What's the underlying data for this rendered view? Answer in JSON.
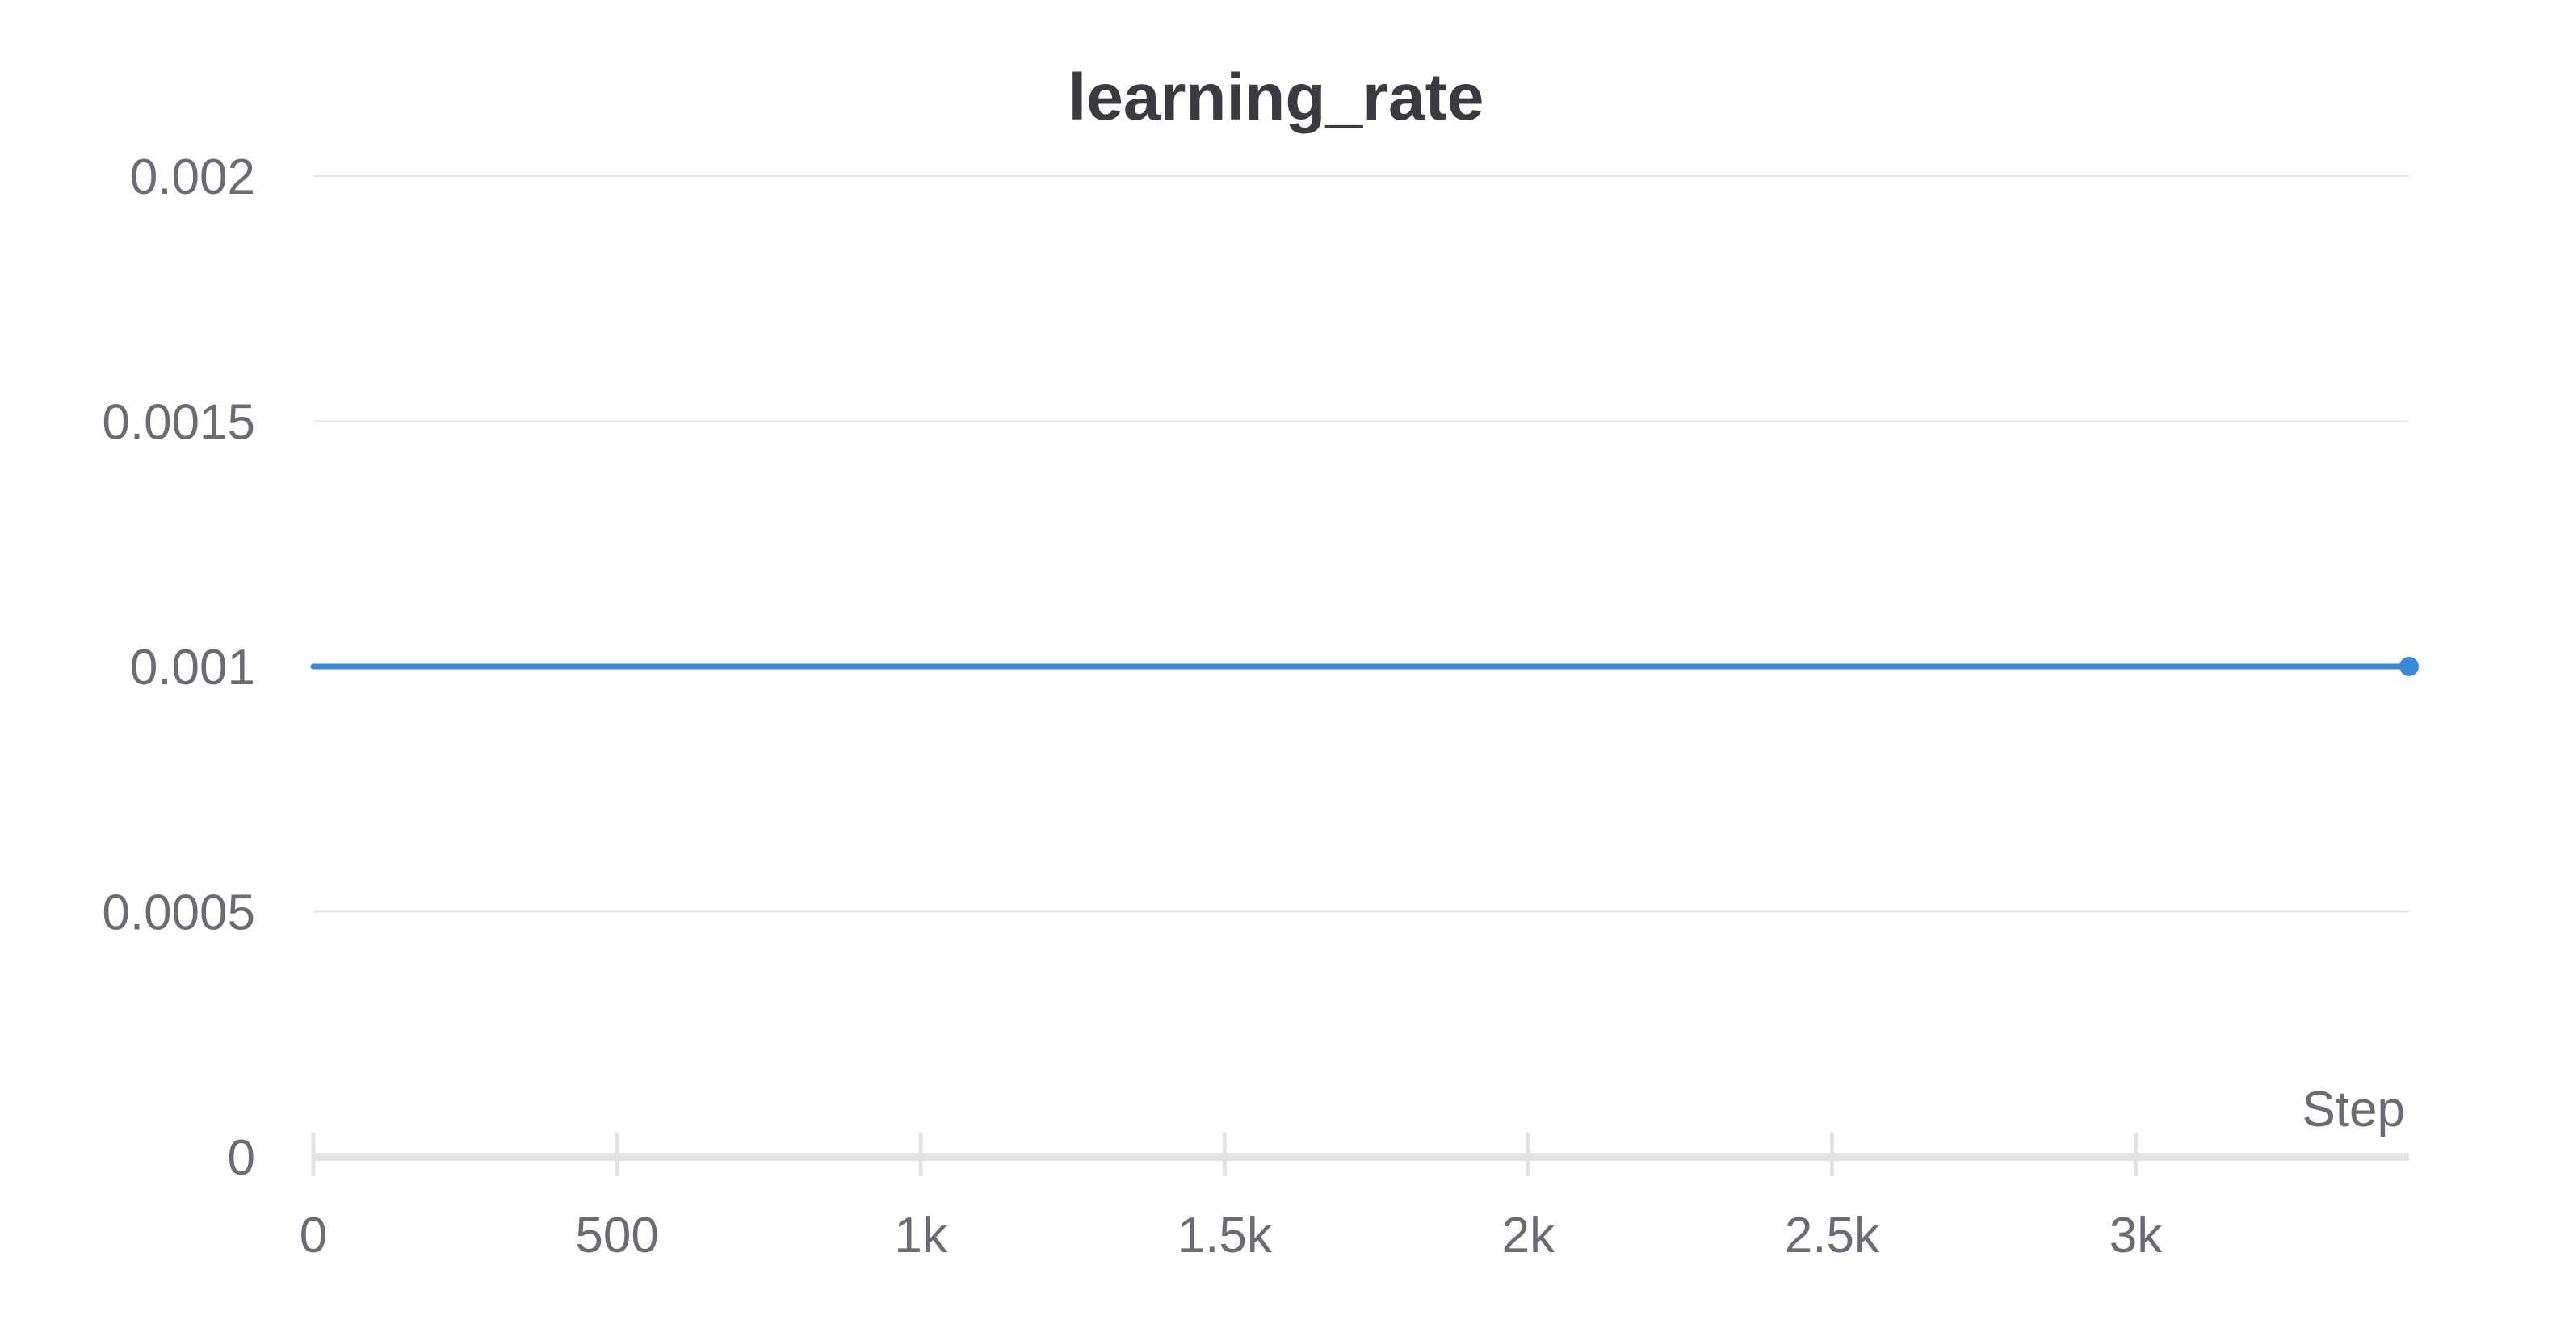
{
  "chart_data": {
    "type": "line",
    "title": "learning_rate",
    "xlabel": "Step",
    "ylabel": "",
    "xlim": [
      0,
      3450
    ],
    "ylim": [
      0,
      0.002
    ],
    "x_ticks": [
      {
        "value": 0,
        "label": "0"
      },
      {
        "value": 500,
        "label": "500"
      },
      {
        "value": 1000,
        "label": "1k"
      },
      {
        "value": 1500,
        "label": "1.5k"
      },
      {
        "value": 2000,
        "label": "2k"
      },
      {
        "value": 2500,
        "label": "2.5k"
      },
      {
        "value": 3000,
        "label": "3k"
      }
    ],
    "y_ticks": [
      {
        "value": 0,
        "label": "0"
      },
      {
        "value": 0.0005,
        "label": "0.0005"
      },
      {
        "value": 0.001,
        "label": "0.001"
      },
      {
        "value": 0.0015,
        "label": "0.0015"
      },
      {
        "value": 0.002,
        "label": "0.002"
      }
    ],
    "grid": true,
    "series": [
      {
        "color": "#3b88d6",
        "x": [
          0,
          3450
        ],
        "y": [
          0.001,
          0.001
        ],
        "end_marker": true
      }
    ]
  }
}
